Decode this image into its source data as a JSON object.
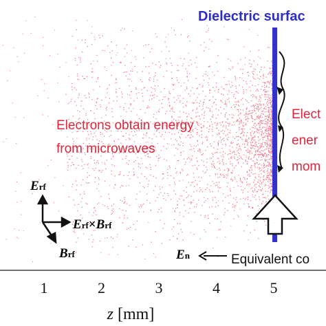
{
  "labels": {
    "surface": "Dielectric surfac",
    "left_text": [
      "Electrons obtain energy",
      "from microwaves"
    ],
    "right_text": [
      "Elect",
      "ener",
      "mom"
    ],
    "equivalent": "Equivalent co"
  },
  "vectors": {
    "e_rf": {
      "symbol": "E",
      "subscript": "rf"
    },
    "cross": {
      "left": "E",
      "left_sub": "rf",
      "operator": "×",
      "right": "B",
      "right_sub": "rf"
    },
    "b_rf": {
      "symbol": "B",
      "subscript": "rf"
    },
    "e_n": {
      "symbol": "E",
      "subscript": "n"
    }
  },
  "axis": {
    "label_symbol": "z",
    "label_unit": "[mm]",
    "ticks": [
      "1",
      "2",
      "3",
      "4",
      "5"
    ]
  }
}
